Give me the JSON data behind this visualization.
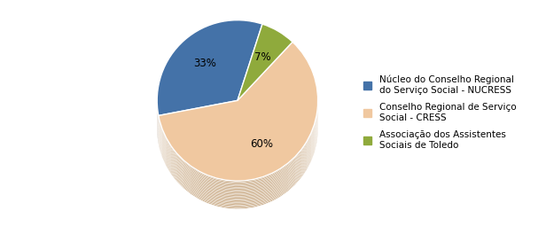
{
  "values": [
    33,
    60,
    7
  ],
  "colors": [
    "#4472A8",
    "#F0C8A0",
    "#8FAA3C"
  ],
  "shadow_colors": [
    "#9B7B5B",
    "#C8A882",
    "#7A7A5A"
  ],
  "labels": [
    "33%",
    "60%",
    "7%"
  ],
  "legend_labels": [
    "Núcleo do Conselho Regional\ndo Serviço Social - NUCRESS",
    "Conselho Regional de Serviço\nSocial - CRESS",
    "Associação dos Assistentes\nSociais de Toledo"
  ],
  "startangle": 72,
  "label_fontsize": 8.5,
  "legend_fontsize": 7.5,
  "background_color": "#FFFFFF",
  "pie_edge_color": "#FFFFFF",
  "label_colors": [
    "black",
    "black",
    "black"
  ]
}
